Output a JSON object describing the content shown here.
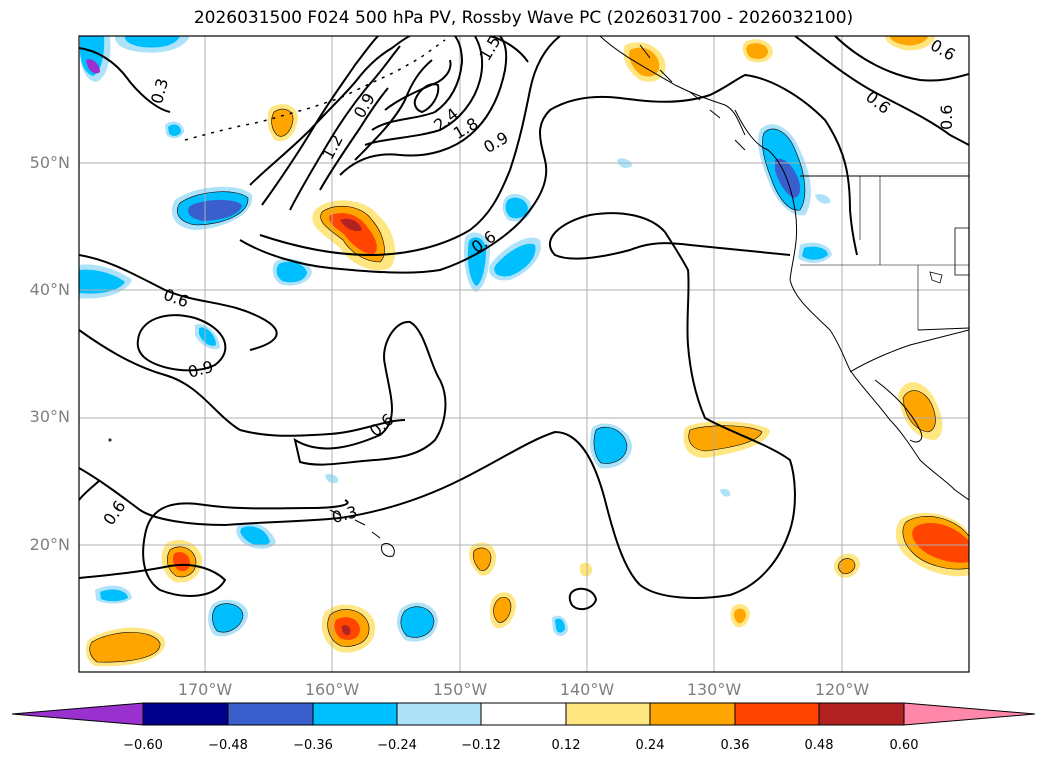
{
  "title": "2026031500 F024 500 hPa PV, Rossby Wave PC (2026031700 - 2026032100)",
  "lat_labels": [
    "50°N",
    "40°N",
    "30°N",
    "20°N"
  ],
  "lon_labels": [
    "170°W",
    "160°W",
    "150°W",
    "140°W",
    "130°W",
    "120°W"
  ],
  "contour_labels": [
    "0.3",
    "1.2",
    "0.9",
    "2.4",
    "1.8",
    "0.9",
    "0.6",
    "0.6",
    "0.6",
    "0.9",
    "0.6",
    "0.3",
    "0.6",
    "0.6",
    "0.6",
    "1.5"
  ],
  "colorbar": {
    "ticks": [
      "−0.60",
      "−0.48",
      "−0.36",
      "−0.24",
      "−0.12",
      "0.12",
      "0.24",
      "0.36",
      "0.48",
      "0.60"
    ],
    "colors": [
      "#9b30d0",
      "#00008b",
      "#3a5fcd",
      "#00bfff",
      "#aee2f8",
      "#ffffff",
      "#ffe680",
      "#ffa500",
      "#ff4500",
      "#b22222",
      "#ff88aa"
    ]
  },
  "colors": {
    "frame": "#000000",
    "grid": "#b0b0b0",
    "contour": "#000000",
    "label": "#808080"
  }
}
